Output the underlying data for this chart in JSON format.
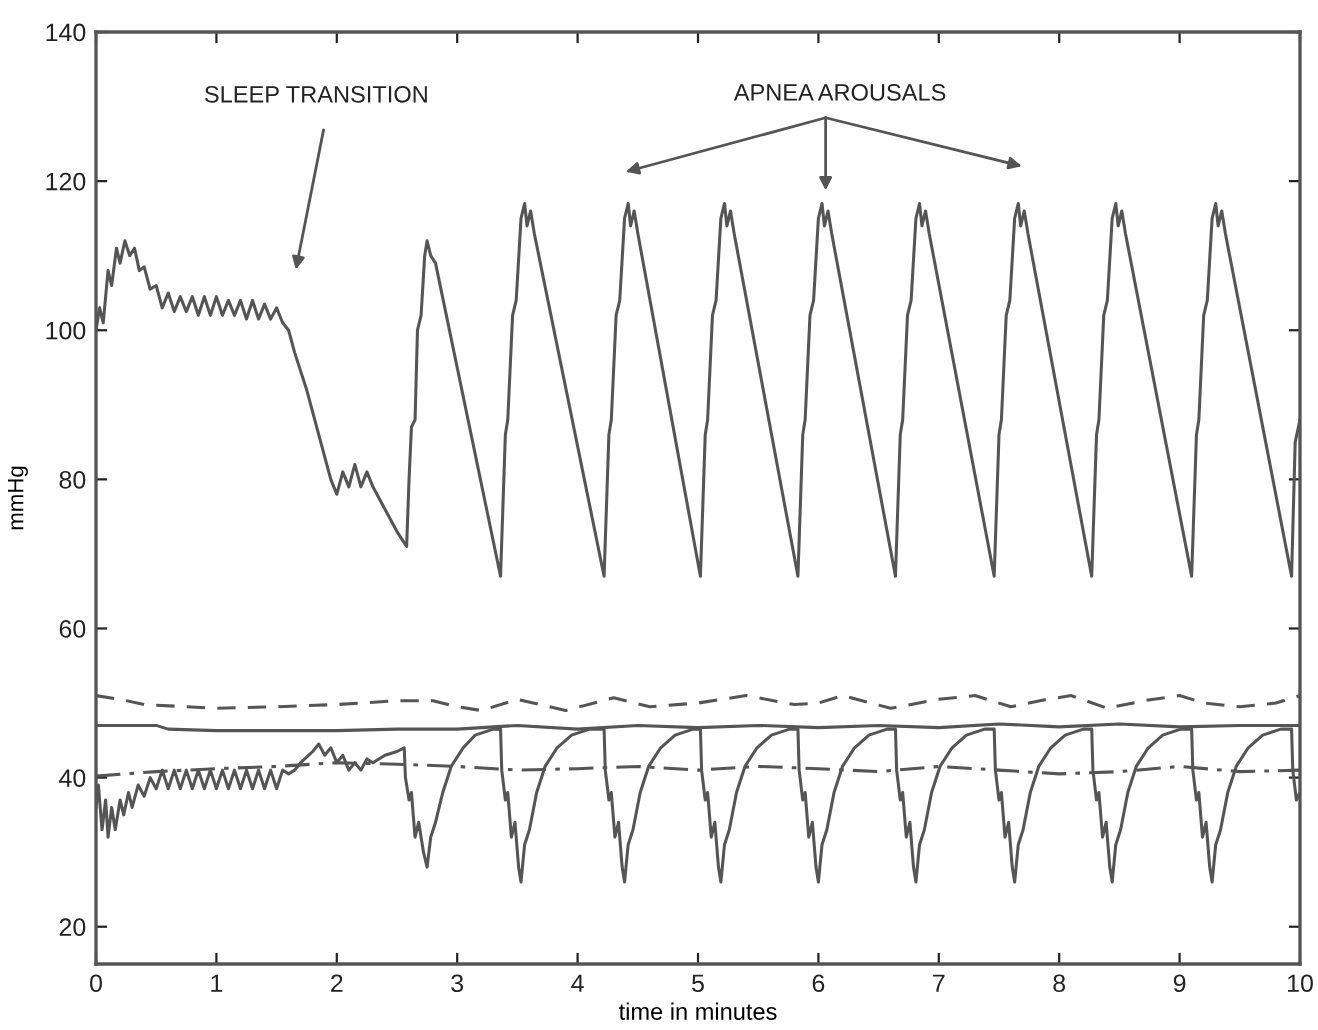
{
  "chart_data": {
    "type": "line",
    "xlabel": "time in minutes",
    "ylabel": "mmHg",
    "xlim": [
      0,
      10
    ],
    "xticks": [
      0,
      1,
      2,
      3,
      4,
      5,
      6,
      7,
      8,
      9,
      10
    ],
    "ylim": [
      15,
      140
    ],
    "yticks": [
      20,
      40,
      60,
      80,
      100,
      120,
      140
    ],
    "grid": false,
    "marker": "none",
    "annotations": [
      "SLEEP TRANSITION",
      "APNEA AROUSALS"
    ],
    "series": [
      {
        "color": "#555555",
        "line_style": "solid",
        "x": [
          0,
          0.03,
          0.06,
          0.1,
          0.13,
          0.17,
          0.2,
          0.24,
          0.28,
          0.32,
          0.36,
          0.4,
          0.45,
          0.5,
          0.55,
          0.6,
          0.65,
          0.7,
          0.75,
          0.8,
          0.85,
          0.9,
          0.95,
          1.0,
          1.05,
          1.1,
          1.15,
          1.2,
          1.25,
          1.3,
          1.35,
          1.4,
          1.45,
          1.5,
          1.55,
          1.6,
          1.65,
          1.75,
          1.85,
          1.95,
          2.0,
          2.05,
          2.1,
          2.15,
          2.2,
          2.25,
          2.3,
          2.4,
          2.5,
          2.58,
          2.6,
          2.62,
          2.65,
          2.67,
          2.7,
          2.73,
          2.75,
          2.78,
          2.82,
          3.36,
          3.4,
          3.42,
          3.46,
          3.49,
          3.53,
          3.56,
          3.58,
          3.61,
          3.64,
          4.22,
          4.26,
          4.28,
          4.32,
          4.35,
          4.39,
          4.42,
          4.44,
          4.47,
          4.5,
          5.02,
          5.06,
          5.08,
          5.12,
          5.15,
          5.19,
          5.22,
          5.24,
          5.27,
          5.3,
          5.83,
          5.87,
          5.89,
          5.93,
          5.96,
          6.0,
          6.03,
          6.05,
          6.08,
          6.11,
          6.64,
          6.68,
          6.7,
          6.74,
          6.77,
          6.81,
          6.84,
          6.86,
          6.89,
          6.92,
          7.46,
          7.5,
          7.52,
          7.56,
          7.59,
          7.63,
          7.66,
          7.68,
          7.71,
          7.74,
          8.27,
          8.31,
          8.33,
          8.37,
          8.4,
          8.44,
          8.47,
          8.49,
          8.52,
          8.55,
          9.1,
          9.14,
          9.16,
          9.2,
          9.23,
          9.27,
          9.3,
          9.32,
          9.35,
          9.38,
          9.93,
          9.96,
          10.0
        ],
        "values": [
          100,
          103,
          101,
          108,
          106,
          111,
          109,
          112,
          110,
          111,
          108,
          108.5,
          105.5,
          106,
          103,
          105,
          102.5,
          104.5,
          102.5,
          104.5,
          102,
          104.5,
          102,
          104.5,
          102,
          104,
          102,
          104,
          101.5,
          104,
          101.5,
          103.5,
          101.5,
          103,
          101,
          100,
          97,
          92,
          86,
          80,
          78,
          81,
          79,
          82,
          79,
          81,
          79,
          76,
          73,
          71,
          80,
          87,
          88,
          100,
          102,
          110,
          112,
          110,
          109,
          67,
          86,
          88,
          102,
          104,
          115,
          117,
          114,
          116,
          113,
          67,
          86,
          88,
          102,
          104,
          115,
          117,
          114,
          116,
          113,
          67,
          86,
          88,
          102,
          104,
          115,
          117,
          114,
          116,
          113,
          67,
          86,
          88,
          102,
          104,
          115,
          117,
          114,
          116,
          113,
          67,
          86,
          88,
          102,
          104,
          115,
          117,
          114,
          116,
          113,
          67,
          86,
          88,
          102,
          104,
          115,
          117,
          114,
          116,
          113,
          67,
          86,
          88,
          102,
          104,
          115,
          117,
          114,
          116,
          113,
          67,
          86,
          88,
          102,
          104,
          115,
          117,
          114,
          116,
          113,
          67,
          85,
          88
        ]
      },
      {
        "color": "#555555",
        "line_style": "solid",
        "x": [
          0,
          0.02,
          0.05,
          0.08,
          0.1,
          0.13,
          0.16,
          0.2,
          0.23,
          0.27,
          0.3,
          0.35,
          0.4,
          0.45,
          0.5,
          0.55,
          0.6,
          0.65,
          0.7,
          0.75,
          0.8,
          0.85,
          0.9,
          0.95,
          1.0,
          1.05,
          1.1,
          1.15,
          1.2,
          1.25,
          1.3,
          1.35,
          1.4,
          1.45,
          1.5,
          1.55,
          1.6,
          1.65,
          1.7,
          1.8,
          1.85,
          1.9,
          1.95,
          2.0,
          2.05,
          2.1,
          2.15,
          2.2,
          2.25,
          2.3,
          2.4,
          2.5,
          2.56,
          2.57,
          2.6,
          2.62,
          2.65,
          2.68,
          2.72,
          2.75,
          2.78,
          2.82,
          2.88,
          2.95,
          3.05,
          3.15,
          3.3,
          3.36,
          3.37,
          3.4,
          3.42,
          3.45,
          3.48,
          3.51,
          3.53,
          3.56,
          3.6,
          3.66,
          3.73,
          3.83,
          3.95,
          4.1,
          4.22,
          4.23,
          4.26,
          4.28,
          4.31,
          4.34,
          4.37,
          4.39,
          4.42,
          4.46,
          4.52,
          4.59,
          4.69,
          4.81,
          4.96,
          5.02,
          5.03,
          5.06,
          5.08,
          5.11,
          5.14,
          5.17,
          5.19,
          5.22,
          5.26,
          5.32,
          5.39,
          5.49,
          5.61,
          5.76,
          5.83,
          5.84,
          5.87,
          5.89,
          5.92,
          5.95,
          5.98,
          6.0,
          6.03,
          6.07,
          6.13,
          6.2,
          6.3,
          6.42,
          6.57,
          6.64,
          6.65,
          6.68,
          6.7,
          6.73,
          6.76,
          6.79,
          6.81,
          6.84,
          6.88,
          6.94,
          7.01,
          7.11,
          7.23,
          7.38,
          7.46,
          7.47,
          7.5,
          7.52,
          7.55,
          7.58,
          7.61,
          7.63,
          7.66,
          7.7,
          7.76,
          7.83,
          7.93,
          8.05,
          8.2,
          8.27,
          8.28,
          8.31,
          8.33,
          8.36,
          8.39,
          8.42,
          8.44,
          8.47,
          8.51,
          8.57,
          8.64,
          8.74,
          8.86,
          9.01,
          9.1,
          9.11,
          9.14,
          9.16,
          9.19,
          9.22,
          9.25,
          9.27,
          9.3,
          9.34,
          9.4,
          9.47,
          9.57,
          9.69,
          9.84,
          9.93,
          9.94,
          9.97,
          10.0
        ],
        "values": [
          36,
          39,
          33,
          37,
          32,
          36,
          33,
          37,
          35,
          38,
          36,
          39,
          37.5,
          40,
          38.5,
          41,
          38.5,
          41,
          38.5,
          41,
          38.5,
          41,
          38.5,
          41,
          38.5,
          41,
          38.5,
          41,
          38.5,
          41,
          38.5,
          41,
          38.5,
          41,
          38.5,
          41,
          40.5,
          41,
          42,
          43.5,
          44.5,
          43,
          44,
          42,
          43,
          41,
          42,
          41,
          42.5,
          42,
          43,
          43.5,
          44,
          40,
          37,
          38,
          32,
          34,
          30,
          28,
          32,
          34,
          38,
          41.5,
          44,
          45.7,
          46.5,
          46.5,
          41,
          37,
          38,
          32,
          34,
          28,
          26,
          31,
          33,
          38,
          41.5,
          44,
          45.7,
          46.5,
          46.5,
          41,
          37,
          38,
          32,
          34,
          28,
          26,
          31,
          33,
          38,
          41.5,
          44,
          45.7,
          46.5,
          46.5,
          41,
          37,
          38,
          32,
          34,
          28,
          26,
          31,
          33,
          38,
          41.5,
          44,
          45.7,
          46.5,
          46.5,
          41,
          37,
          38,
          32,
          34,
          28,
          26,
          31,
          33,
          38,
          41.5,
          44,
          45.7,
          46.5,
          46.5,
          41,
          37,
          38,
          32,
          34,
          28,
          26,
          31,
          33,
          38,
          41.5,
          44,
          45.7,
          46.5,
          46.5,
          41,
          37,
          38,
          32,
          34,
          28,
          26,
          31,
          33,
          38,
          41.5,
          44,
          45.7,
          46.5,
          46.5,
          41,
          37,
          38,
          32,
          34,
          28,
          26,
          31,
          33,
          38,
          41.5,
          44,
          45.7,
          46.5,
          46.5,
          41,
          37,
          38,
          32,
          34,
          28,
          26,
          31,
          33,
          38,
          41.5,
          44,
          45.7,
          46.5,
          46.5,
          41,
          37,
          38
        ]
      },
      {
        "color": "#555555",
        "line_style": "solid",
        "x": [
          0,
          0.5,
          0.6,
          1,
          1.5,
          2,
          2.5,
          3,
          3.5,
          4,
          4.5,
          5,
          5.5,
          6,
          6.5,
          7,
          7.5,
          8,
          8.5,
          9,
          9.5,
          10
        ],
        "values": [
          47,
          47,
          46.5,
          46.3,
          46.3,
          46.3,
          46.5,
          46.5,
          47,
          46.5,
          47,
          46.7,
          47,
          46.7,
          47,
          46.7,
          47.2,
          46.8,
          47.2,
          46.8,
          47,
          47
        ]
      },
      {
        "color": "#555555",
        "line_style": "dashed",
        "x": [
          0,
          0.2,
          0.4,
          1,
          1.5,
          2,
          2.5,
          2.8,
          3.0,
          3.2,
          3.5,
          3.9,
          4.3,
          4.6,
          5,
          5.4,
          5.8,
          6.0,
          6.2,
          6.6,
          7.0,
          7.3,
          7.6,
          7.9,
          8.1,
          8.4,
          8.7,
          9.0,
          9.2,
          9.5,
          9.8,
          10
        ],
        "values": [
          51,
          50.5,
          49.8,
          49.3,
          49.5,
          49.8,
          50.3,
          50.3,
          49.5,
          49,
          50.5,
          49,
          50.7,
          49.5,
          50,
          51,
          49.8,
          50,
          51,
          49.3,
          50.5,
          51,
          49.5,
          50.5,
          51,
          49.3,
          50.3,
          51,
          50,
          49.5,
          50,
          51
        ]
      },
      {
        "color": "#555555",
        "line_style": "dashdot",
        "x": [
          0,
          0.5,
          1,
          1.5,
          2,
          2.5,
          3,
          3.5,
          4,
          4.5,
          5,
          5.5,
          6,
          6.5,
          7,
          7.5,
          8,
          8.5,
          9,
          9.5,
          10
        ],
        "values": [
          40.2,
          40.8,
          41.2,
          41.5,
          42,
          41.8,
          41.5,
          41,
          41.2,
          41.5,
          41,
          41.5,
          41.2,
          40.8,
          41.5,
          41,
          40.5,
          40.8,
          41.5,
          40.8,
          41
        ]
      }
    ]
  }
}
